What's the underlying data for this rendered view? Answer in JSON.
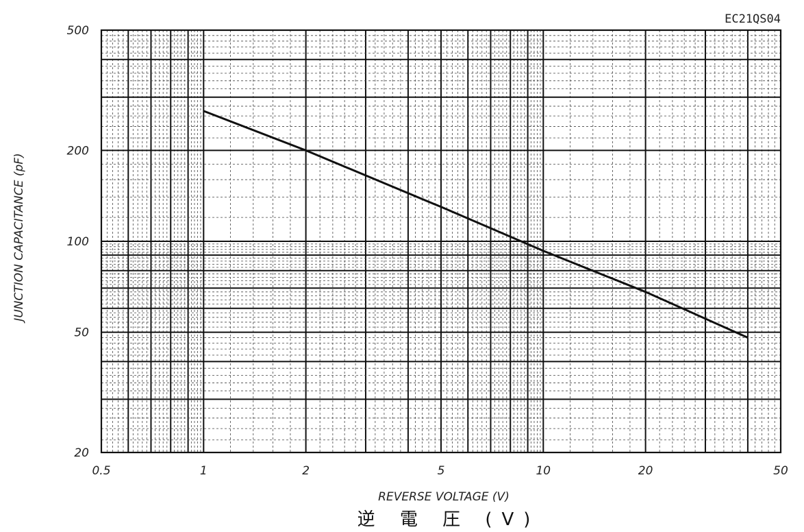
{
  "chart_data": {
    "type": "line",
    "title": "",
    "part_number": "EC21QS04",
    "xlabel": "REVERSE VOLTAGE (V)",
    "xlabel_jp": "逆 電 圧 (V)",
    "ylabel": "JUNCTION CAPACITANCE (pF)",
    "x_scale": "log",
    "y_scale": "log",
    "xlim": [
      0.5,
      50
    ],
    "ylim": [
      20,
      500
    ],
    "x_ticks": [
      {
        "value": 0.5,
        "label": "0.5"
      },
      {
        "value": 1,
        "label": "1"
      },
      {
        "value": 2,
        "label": "2"
      },
      {
        "value": 5,
        "label": "5"
      },
      {
        "value": 10,
        "label": "10"
      },
      {
        "value": 20,
        "label": "20"
      },
      {
        "value": 50,
        "label": "50"
      }
    ],
    "y_ticks": [
      {
        "value": 20,
        "label": "20"
      },
      {
        "value": 50,
        "label": "50"
      },
      {
        "value": 100,
        "label": "100"
      },
      {
        "value": 200,
        "label": "200"
      },
      {
        "value": 500,
        "label": "500"
      }
    ],
    "grid": true,
    "series": [
      {
        "x": [
          1,
          2,
          5,
          10,
          20,
          40
        ],
        "y": [
          270,
          200,
          130,
          93,
          68,
          48
        ]
      }
    ]
  }
}
